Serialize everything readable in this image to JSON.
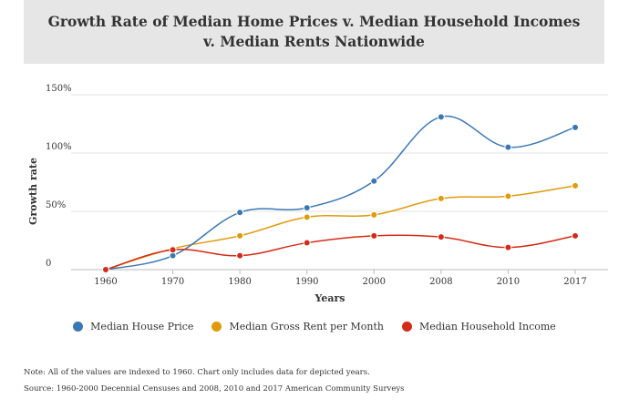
{
  "header": {
    "title": "Growth Rate of Median Home Prices v. Median Household Incomes v. Median Rents Nationwide"
  },
  "chart_data": {
    "type": "line",
    "x": [
      "1960",
      "1970",
      "1980",
      "1990",
      "2000",
      "2008",
      "2010",
      "2017"
    ],
    "xlabel": "Years",
    "ylabel": "Growth rate",
    "ylim": [
      0,
      150
    ],
    "yticks": [
      {
        "value": 0,
        "label": "0"
      },
      {
        "value": 50,
        "label": "50%"
      },
      {
        "value": 100,
        "label": "100%"
      },
      {
        "value": 150,
        "label": "150%"
      }
    ],
    "grid": true,
    "legend": "bottom",
    "series": [
      {
        "name": "Median House Price",
        "color": "#3a78b5",
        "values": [
          0,
          12,
          49,
          53,
          76,
          131,
          105,
          122
        ]
      },
      {
        "name": "Median Gross Rent per Month",
        "color": "#e09b0c",
        "values": [
          0,
          18,
          29,
          45,
          47,
          61,
          63,
          72
        ]
      },
      {
        "name": "Median Household Income",
        "color": "#d42a17",
        "values": [
          0,
          17,
          12,
          23,
          29,
          28,
          19,
          29
        ]
      }
    ]
  },
  "notes": {
    "line1": "Note: All of the values are indexed to 1960. Chart only includes data for depicted years.",
    "line2": "Source: 1960-2000 Decennial Censuses and 2008, 2010 and 2017 American Community Surveys"
  }
}
